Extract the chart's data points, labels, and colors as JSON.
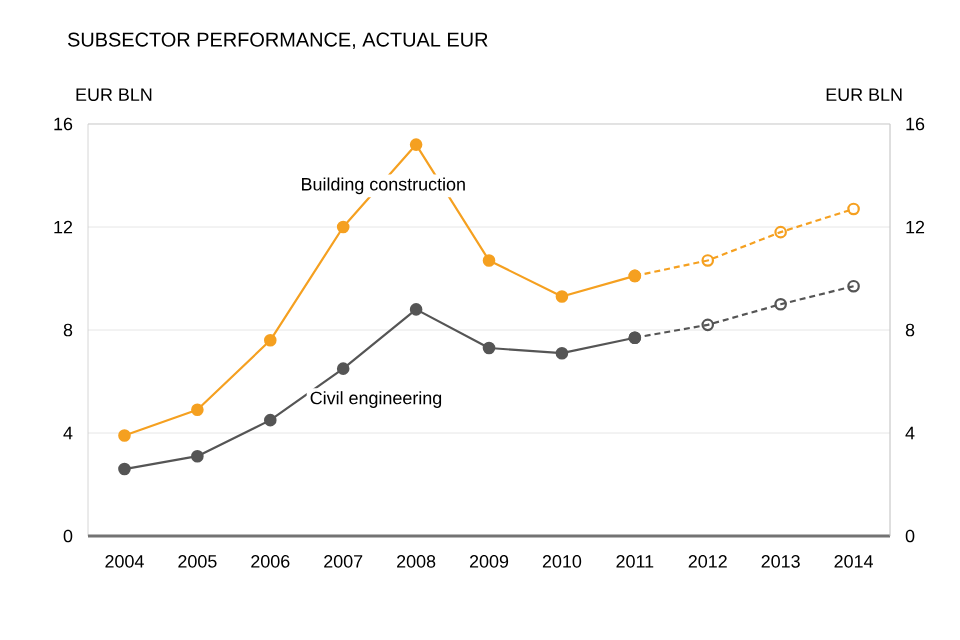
{
  "chart_data": {
    "type": "line",
    "title": "SUBSECTOR PERFORMANCE, ACTUAL EUR",
    "ylabel": "EUR BLN",
    "y2label": "EUR BLN",
    "categories": [
      "2004",
      "2005",
      "2006",
      "2007",
      "2008",
      "2009",
      "2010",
      "2011",
      "2012",
      "2013",
      "2014"
    ],
    "series": [
      {
        "name": "Building construction",
        "color": "#f5a020",
        "line_style": "solid",
        "values": [
          3.9,
          4.9,
          7.6,
          12.0,
          15.2,
          10.7,
          9.3,
          10.1,
          null,
          null,
          null
        ]
      },
      {
        "name": "Civil engineering",
        "color": "#555555",
        "line_style": "solid",
        "values": [
          2.6,
          3.1,
          4.5,
          6.5,
          8.8,
          7.3,
          7.1,
          7.7,
          null,
          null,
          null
        ]
      },
      {
        "color": "#f5a020",
        "line_style": "dashed",
        "values": [
          null,
          null,
          null,
          null,
          null,
          null,
          null,
          10.1,
          10.7,
          11.8,
          12.7
        ]
      },
      {
        "color": "#555555",
        "line_style": "dashed",
        "values": [
          null,
          null,
          null,
          null,
          null,
          null,
          null,
          7.7,
          8.2,
          9.0,
          9.7
        ]
      }
    ],
    "ylim": [
      0,
      16
    ],
    "yticks": [
      0,
      4,
      8,
      12,
      16
    ],
    "y2lim": [
      0,
      16
    ],
    "y2ticks": [
      0,
      4,
      8,
      12,
      16
    ],
    "grid": "y",
    "marker": "circle"
  }
}
